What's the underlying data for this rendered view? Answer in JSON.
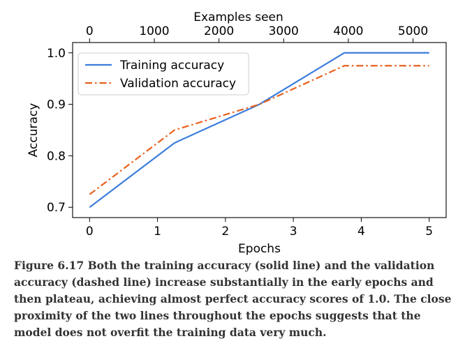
{
  "chart_data": {
    "type": "line",
    "xlabel": "Epochs",
    "ylabel": "Accuracy",
    "top_xlabel": "Examples seen",
    "xlim": [
      -0.25,
      5.25
    ],
    "ylim": [
      0.68,
      1.02
    ],
    "x_ticks": [
      0,
      1,
      2,
      3,
      4,
      5
    ],
    "y_ticks": [
      0.7,
      0.8,
      0.9,
      1.0
    ],
    "y_tick_labels": [
      "0.7",
      "0.8",
      "0.9",
      "1.0"
    ],
    "top_x_ticks": [
      0,
      1000,
      2000,
      3000,
      4000,
      5000
    ],
    "top_x_per_epoch": 1050,
    "legend_position": "upper-left",
    "grid": false,
    "series": [
      {
        "name": "Training accuracy",
        "style": "solid",
        "color": "#3b7ddd",
        "x": [
          0,
          1.25,
          2.5,
          3.75,
          5
        ],
        "y": [
          0.7,
          0.825,
          0.9,
          1.0,
          1.0
        ]
      },
      {
        "name": "Validation accuracy",
        "style": "dashdot",
        "color": "#e8601c",
        "x": [
          0,
          1.25,
          2.5,
          3.75,
          5
        ],
        "y": [
          0.725,
          0.85,
          0.9,
          0.975,
          0.975
        ]
      }
    ]
  },
  "caption": "Figure 6.17 Both the training accuracy (solid line) and the validation accuracy (dashed line) increase substantially in the early epochs and then plateau, achieving almost perfect accuracy scores of 1.0. The close proximity of the two lines throughout the epochs suggests that the model does not overfit the training data very much."
}
